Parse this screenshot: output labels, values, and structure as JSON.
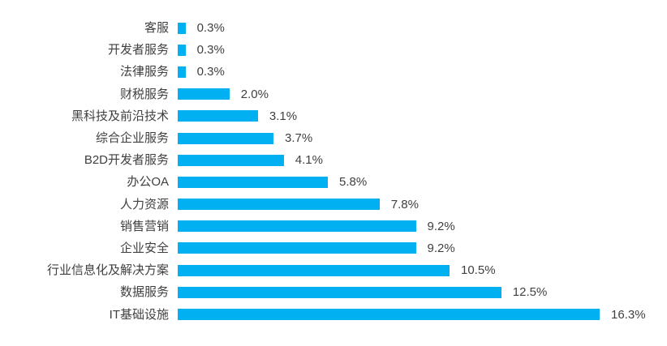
{
  "chart_data": {
    "type": "bar",
    "orientation": "horizontal",
    "title": "",
    "xlabel": "",
    "ylabel": "",
    "grid": false,
    "legend": false,
    "axis_lines": false,
    "bar_color": "#00B0F0",
    "text_color": "#404040",
    "xlim": [
      0,
      16.3
    ],
    "categories": [
      "客服",
      "开发者服务",
      "法律服务",
      "财税服务",
      "黑科技及前沿技术",
      "综合企业服务",
      "B2D开发者服务",
      "办公OA",
      "人力资源",
      "销售营销",
      "企业安全",
      "行业信息化及解决方案",
      "数据服务",
      "IT基础设施"
    ],
    "values": [
      0.3,
      0.3,
      0.3,
      2.0,
      3.1,
      3.7,
      4.1,
      5.8,
      7.8,
      9.2,
      9.2,
      10.5,
      12.5,
      16.3
    ],
    "value_labels": [
      "0.3%",
      "0.3%",
      "0.3%",
      "2.0%",
      "3.1%",
      "3.7%",
      "4.1%",
      "5.8%",
      "7.8%",
      "9.2%",
      "9.2%",
      "10.5%",
      "12.5%",
      "16.3%"
    ]
  }
}
